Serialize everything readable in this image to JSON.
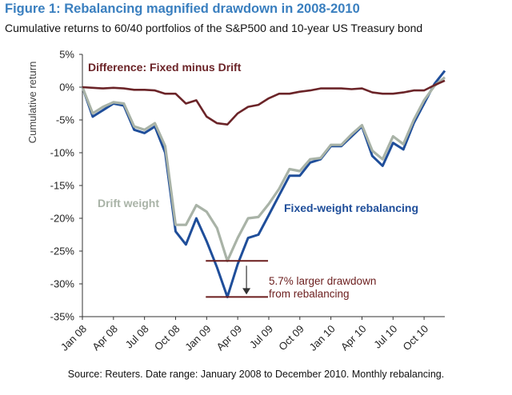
{
  "figure": {
    "title": "Figure 1: Rebalancing magnified drawdown in 2008-2010",
    "subtitle": "Cumulative returns to 60/40 portfolios of the S&P500 and 10-year US Treasury bond",
    "source": "Source: Reuters. Date range: January 2008 to December 2010. Monthly rebalancing."
  },
  "colors": {
    "fixed": "#1f4e9a",
    "drift": "#a9b3a7",
    "difference": "#6b2428",
    "annotation": "#6b1d1d",
    "axis": "#333333"
  },
  "chart_data": {
    "type": "line",
    "ylabel": "Cumulative return",
    "xlabel": "",
    "ylim": [
      -35,
      5
    ],
    "y_ticks": [
      "5%",
      "0%",
      "-5%",
      "-10%",
      "-15%",
      "-20%",
      "-25%",
      "-30%",
      "-35%"
    ],
    "x_ticks": [
      "Jan 08",
      "Apr 08",
      "Jul 08",
      "Oct 08",
      "Jan 09",
      "Apr 09",
      "Jul 09",
      "Oct 09",
      "Jan 10",
      "Apr 10",
      "Jul 10",
      "Oct 10"
    ],
    "x": [
      "2008-01",
      "2008-02",
      "2008-03",
      "2008-04",
      "2008-05",
      "2008-06",
      "2008-07",
      "2008-08",
      "2008-09",
      "2008-10",
      "2008-11",
      "2008-12",
      "2009-01",
      "2009-02",
      "2009-03",
      "2009-04",
      "2009-05",
      "2009-06",
      "2009-07",
      "2009-08",
      "2009-09",
      "2009-10",
      "2009-11",
      "2009-12",
      "2010-01",
      "2010-02",
      "2010-03",
      "2010-04",
      "2010-05",
      "2010-06",
      "2010-07",
      "2010-08",
      "2010-09",
      "2010-10",
      "2010-11",
      "2010-12"
    ],
    "series": [
      {
        "name": "Fixed-weight rebalancing",
        "values": [
          0,
          -4.5,
          -3.5,
          -2.5,
          -2.8,
          -6.5,
          -7.0,
          -6.0,
          -10.0,
          -22.0,
          -24.0,
          -20.0,
          -23.5,
          -27.5,
          -32.0,
          -27.0,
          -23.0,
          -22.5,
          -19.5,
          -16.5,
          -13.5,
          -13.5,
          -11.5,
          -11.0,
          -9.0,
          -9.0,
          -7.5,
          -6.0,
          -10.5,
          -12.0,
          -8.5,
          -9.5,
          -5.5,
          -2.5,
          0.5,
          2.5
        ]
      },
      {
        "name": "Drift weight",
        "values": [
          0,
          -4.0,
          -3.0,
          -2.3,
          -2.5,
          -6.0,
          -6.5,
          -5.5,
          -9.0,
          -21.0,
          -21.0,
          -18.0,
          -19.0,
          -21.5,
          -26.5,
          -23.0,
          -20.0,
          -19.8,
          -17.8,
          -15.5,
          -12.5,
          -12.8,
          -11.0,
          -10.8,
          -8.8,
          -8.8,
          -7.2,
          -5.8,
          -9.7,
          -11.0,
          -7.5,
          -8.7,
          -5.0,
          -2.0,
          0.2,
          1.5
        ]
      },
      {
        "name": "Difference: Fixed minus Drift",
        "values": [
          0,
          -0.1,
          -0.2,
          -0.1,
          -0.2,
          -0.4,
          -0.4,
          -0.5,
          -1.0,
          -1.0,
          -2.5,
          -2.0,
          -4.5,
          -5.5,
          -5.7,
          -4.0,
          -3.0,
          -2.7,
          -1.7,
          -1.0,
          -1.0,
          -0.7,
          -0.5,
          -0.2,
          -0.2,
          -0.2,
          -0.3,
          -0.2,
          -0.8,
          -1.0,
          -1.0,
          -0.8,
          -0.5,
          -0.5,
          0.3,
          1.0
        ]
      }
    ],
    "annotations": {
      "drawdown_note": [
        "5.7% larger drawdown",
        "from rebalancing"
      ],
      "drawdown_drift_low": -26.5,
      "drawdown_fixed_low": -32.0
    },
    "grid": false,
    "legend": "inline labels"
  }
}
